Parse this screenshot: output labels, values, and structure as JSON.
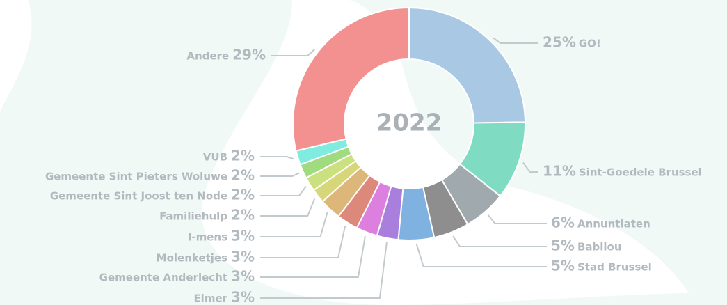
{
  "chart_data": {
    "type": "donut",
    "center_label": "2022",
    "categories": [
      "GO!",
      "Sint-Goedele Brussel",
      "Annuntiaten",
      "Babilou",
      "Stad Brussel",
      "Elmer",
      "Gemeente Anderlecht",
      "Molenketjes",
      "I-mens",
      "Familiehulp",
      "Gemeente Sint Joost ten Node",
      "Gemeente Sint Pieters Woluwe",
      "VUB",
      "Andere"
    ],
    "values": [
      25,
      11,
      6,
      5,
      5,
      3,
      3,
      3,
      3,
      2,
      2,
      2,
      2,
      29
    ],
    "value_labels": [
      "25%",
      "11%",
      "6%",
      "5%",
      "5%",
      "3%",
      "3%",
      "3%",
      "3%",
      "2%",
      "2%",
      "2%",
      "2%",
      "29%"
    ],
    "colors": [
      "#a9c8e4",
      "#7fdcc3",
      "#a0a9ae",
      "#8e8e8e",
      "#7fb2e0",
      "#a87fdc",
      "#dd7fdf",
      "#dc887a",
      "#ddb77a",
      "#d7d77a",
      "#cbe07f",
      "#a0dc7f",
      "#7fecdf",
      "#f39191"
    ]
  }
}
